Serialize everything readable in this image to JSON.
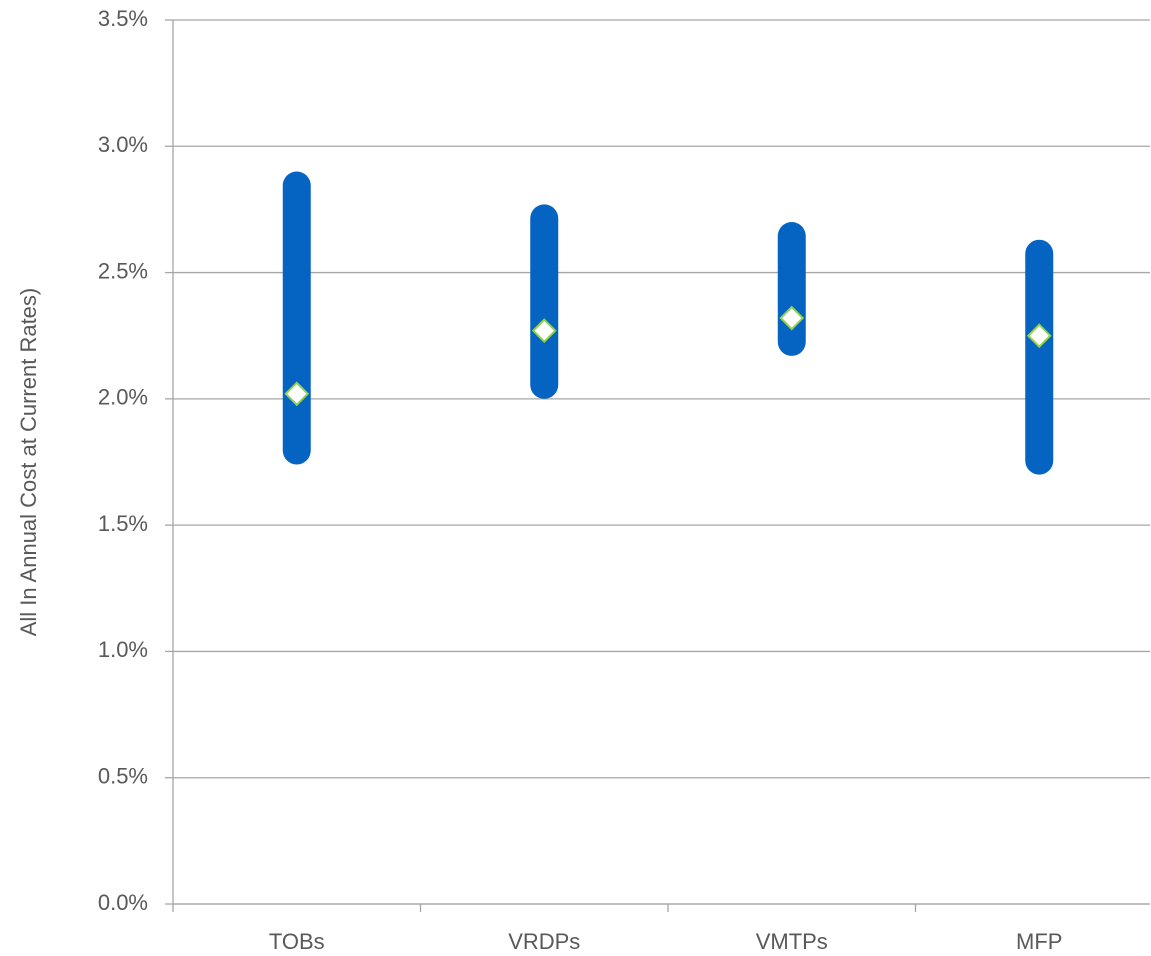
{
  "chart_data": {
    "type": "range",
    "y_label": "All In Annual Cost at Current Rates)",
    "categories": [
      "TOBs",
      "VRDPs",
      "VMTPs",
      "MFP"
    ],
    "low": [
      1.74,
      2.0,
      2.17,
      1.7
    ],
    "high": [
      2.9,
      2.77,
      2.7,
      2.63
    ],
    "values": [
      2.02,
      2.27,
      2.32,
      2.25
    ],
    "color": "#0563c1",
    "marker_fill": "#ffffff",
    "marker_edge": "#92d050",
    "ylim": [
      0,
      3.5
    ],
    "yticks": [
      {
        "value": 0,
        "label": "0.0%"
      },
      {
        "value": 0.5,
        "label": "0.5%"
      },
      {
        "value": 1,
        "label": "1.0%"
      },
      {
        "value": 1.5,
        "label": "1.5%"
      },
      {
        "value": 2,
        "label": "2.0%"
      },
      {
        "value": 2.5,
        "label": "2.5%"
      },
      {
        "value": 3,
        "label": "3.0%"
      },
      {
        "value": 3.5,
        "label": "3.5%"
      }
    ],
    "grid": true
  }
}
